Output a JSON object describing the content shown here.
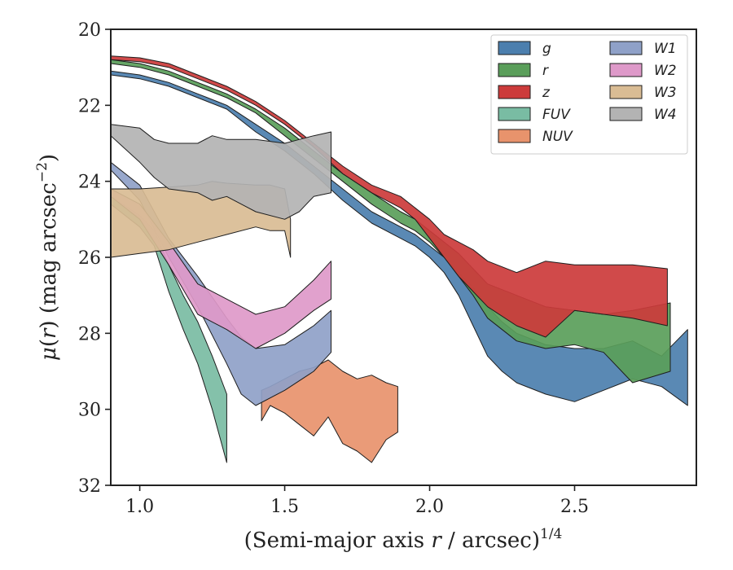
{
  "chart_data": {
    "type": "area",
    "xlabel_main": "(Semi-major axis ",
    "xlabel_var": "r",
    "xlabel_mid": " / arcsec)",
    "xlabel_sup": "1/4",
    "ylabel_mu": "μ",
    "ylabel_open": "(",
    "ylabel_var": "r",
    "ylabel_mid": ") (mag arcsec",
    "ylabel_sup": "−2",
    "ylabel_close": ")",
    "xlim": [
      0.9,
      2.92
    ],
    "ylim": [
      32,
      20
    ],
    "y_inverted": true,
    "xticks": [
      1.0,
      1.5,
      2.0,
      2.5
    ],
    "xtick_labels": [
      "1.0",
      "1.5",
      "2.0",
      "2.5"
    ],
    "yticks": [
      20,
      22,
      24,
      26,
      28,
      30,
      32
    ],
    "ytick_labels": [
      "20",
      "22",
      "24",
      "26",
      "28",
      "30",
      "32"
    ],
    "grid": false,
    "legend_position": "top-right",
    "legend_columns": 2,
    "series": [
      {
        "name": "g",
        "color": "#4c7fae",
        "x": [
          0.9,
          1.0,
          1.1,
          1.2,
          1.3,
          1.4,
          1.5,
          1.6,
          1.7,
          1.8,
          1.9,
          1.95,
          2.0,
          2.05,
          2.1,
          2.15,
          2.2,
          2.25,
          2.3,
          2.4,
          2.5,
          2.6,
          2.7,
          2.8,
          2.89
        ],
        "y1": [
          21.1,
          21.2,
          21.4,
          21.7,
          22.0,
          22.5,
          23.0,
          23.6,
          24.2,
          24.8,
          25.2,
          25.4,
          25.7,
          26.0,
          26.4,
          26.8,
          27.3,
          27.7,
          28.0,
          28.3,
          28.4,
          28.4,
          28.2,
          28.6,
          27.9
        ],
        "y2": [
          21.2,
          21.3,
          21.5,
          21.8,
          22.1,
          22.7,
          23.2,
          23.8,
          24.5,
          25.1,
          25.5,
          25.7,
          26.0,
          26.4,
          27.0,
          27.8,
          28.6,
          29.0,
          29.3,
          29.6,
          29.8,
          29.5,
          29.2,
          29.4,
          29.9
        ]
      },
      {
        "name": "r",
        "color": "#5a9e5a",
        "x": [
          0.9,
          1.0,
          1.1,
          1.2,
          1.3,
          1.4,
          1.5,
          1.6,
          1.7,
          1.8,
          1.9,
          1.95,
          2.0,
          2.05,
          2.1,
          2.15,
          2.2,
          2.3,
          2.4,
          2.5,
          2.6,
          2.7,
          2.83
        ],
        "y1": [
          20.8,
          20.9,
          21.1,
          21.4,
          21.7,
          22.1,
          22.6,
          23.2,
          23.8,
          24.3,
          24.8,
          25.0,
          25.3,
          25.6,
          25.9,
          26.3,
          26.7,
          27.0,
          27.3,
          27.4,
          27.5,
          27.4,
          27.2
        ],
        "y2": [
          20.9,
          21.0,
          21.2,
          21.5,
          21.8,
          22.2,
          22.8,
          23.4,
          24.0,
          24.6,
          25.1,
          25.3,
          25.6,
          26.0,
          26.5,
          27.0,
          27.6,
          28.2,
          28.4,
          28.3,
          28.5,
          29.3,
          29.0
        ]
      },
      {
        "name": "z",
        "color": "#cc3b3b",
        "x": [
          0.9,
          1.0,
          1.1,
          1.2,
          1.3,
          1.4,
          1.5,
          1.6,
          1.7,
          1.8,
          1.9,
          1.95,
          2.0,
          2.05,
          2.1,
          2.15,
          2.2,
          2.3,
          2.4,
          2.5,
          2.6,
          2.7,
          2.82
        ],
        "y1": [
          20.7,
          20.75,
          20.9,
          21.2,
          21.5,
          21.9,
          22.4,
          23.0,
          23.6,
          24.1,
          24.4,
          24.7,
          25.0,
          25.4,
          25.6,
          25.8,
          26.1,
          26.4,
          26.1,
          26.2,
          26.2,
          26.2,
          26.3
        ],
        "y2": [
          20.8,
          20.85,
          21.0,
          21.3,
          21.6,
          22.0,
          22.5,
          23.1,
          23.8,
          24.3,
          24.7,
          25.0,
          25.5,
          26.0,
          26.5,
          26.9,
          27.3,
          27.8,
          28.1,
          27.4,
          27.5,
          27.6,
          27.8
        ]
      },
      {
        "name": "FUV",
        "color": "#79bca3",
        "x": [
          0.9,
          1.0,
          1.05,
          1.1,
          1.15,
          1.2,
          1.25,
          1.3
        ],
        "y1": [
          24.4,
          24.9,
          25.3,
          26.2,
          27.0,
          27.7,
          28.6,
          29.6
        ],
        "y2": [
          24.6,
          25.2,
          25.7,
          26.9,
          27.9,
          28.8,
          30.0,
          31.4
        ]
      },
      {
        "name": "NUV",
        "color": "#e8936c",
        "x": [
          1.42,
          1.45,
          1.5,
          1.55,
          1.6,
          1.65,
          1.7,
          1.75,
          1.8,
          1.85,
          1.89
        ],
        "y1": [
          29.5,
          29.4,
          29.2,
          29.0,
          28.9,
          28.7,
          29.0,
          29.2,
          29.1,
          29.3,
          29.4
        ],
        "y2": [
          30.3,
          29.9,
          30.1,
          30.4,
          30.7,
          30.2,
          30.9,
          31.1,
          31.4,
          30.8,
          30.6
        ]
      },
      {
        "name": "W1",
        "color": "#8fa1c8",
        "x": [
          0.9,
          1.0,
          1.1,
          1.2,
          1.3,
          1.35,
          1.4,
          1.5,
          1.6,
          1.66
        ],
        "y1": [
          23.5,
          24.1,
          25.5,
          26.5,
          27.6,
          28.1,
          28.4,
          28.3,
          27.8,
          27.4
        ],
        "y2": [
          23.7,
          24.5,
          26.0,
          27.3,
          28.8,
          29.6,
          29.9,
          29.5,
          29.0,
          28.5
        ]
      },
      {
        "name": "W2",
        "color": "#de99c9",
        "x": [
          0.9,
          1.0,
          1.1,
          1.2,
          1.3,
          1.4,
          1.5,
          1.6,
          1.66
        ],
        "y1": [
          24.2,
          24.6,
          25.6,
          26.7,
          27.1,
          27.5,
          27.3,
          26.6,
          26.1
        ],
        "y2": [
          24.4,
          25.0,
          26.2,
          27.5,
          27.9,
          28.4,
          28.0,
          27.4,
          27.1
        ]
      },
      {
        "name": "W3",
        "color": "#d9bc94",
        "x": [
          0.9,
          1.0,
          1.1,
          1.2,
          1.25,
          1.3,
          1.4,
          1.45,
          1.5,
          1.52
        ],
        "y1": [
          24.2,
          24.2,
          24.15,
          24.1,
          24.0,
          24.05,
          24.1,
          24.1,
          24.2,
          25.0
        ],
        "y2": [
          26.0,
          25.9,
          25.8,
          25.6,
          25.5,
          25.4,
          25.2,
          25.3,
          25.3,
          26.0
        ]
      },
      {
        "name": "W4",
        "color": "#b3b3b3",
        "x": [
          0.9,
          1.0,
          1.05,
          1.1,
          1.2,
          1.25,
          1.3,
          1.4,
          1.5,
          1.55,
          1.6,
          1.66
        ],
        "y1": [
          22.5,
          22.6,
          22.9,
          23.0,
          23.0,
          22.8,
          22.9,
          22.9,
          23.0,
          22.9,
          22.8,
          22.7
        ],
        "y2": [
          22.8,
          23.5,
          23.9,
          24.2,
          24.3,
          24.5,
          24.4,
          24.8,
          25.0,
          24.8,
          24.4,
          24.3
        ]
      }
    ]
  }
}
